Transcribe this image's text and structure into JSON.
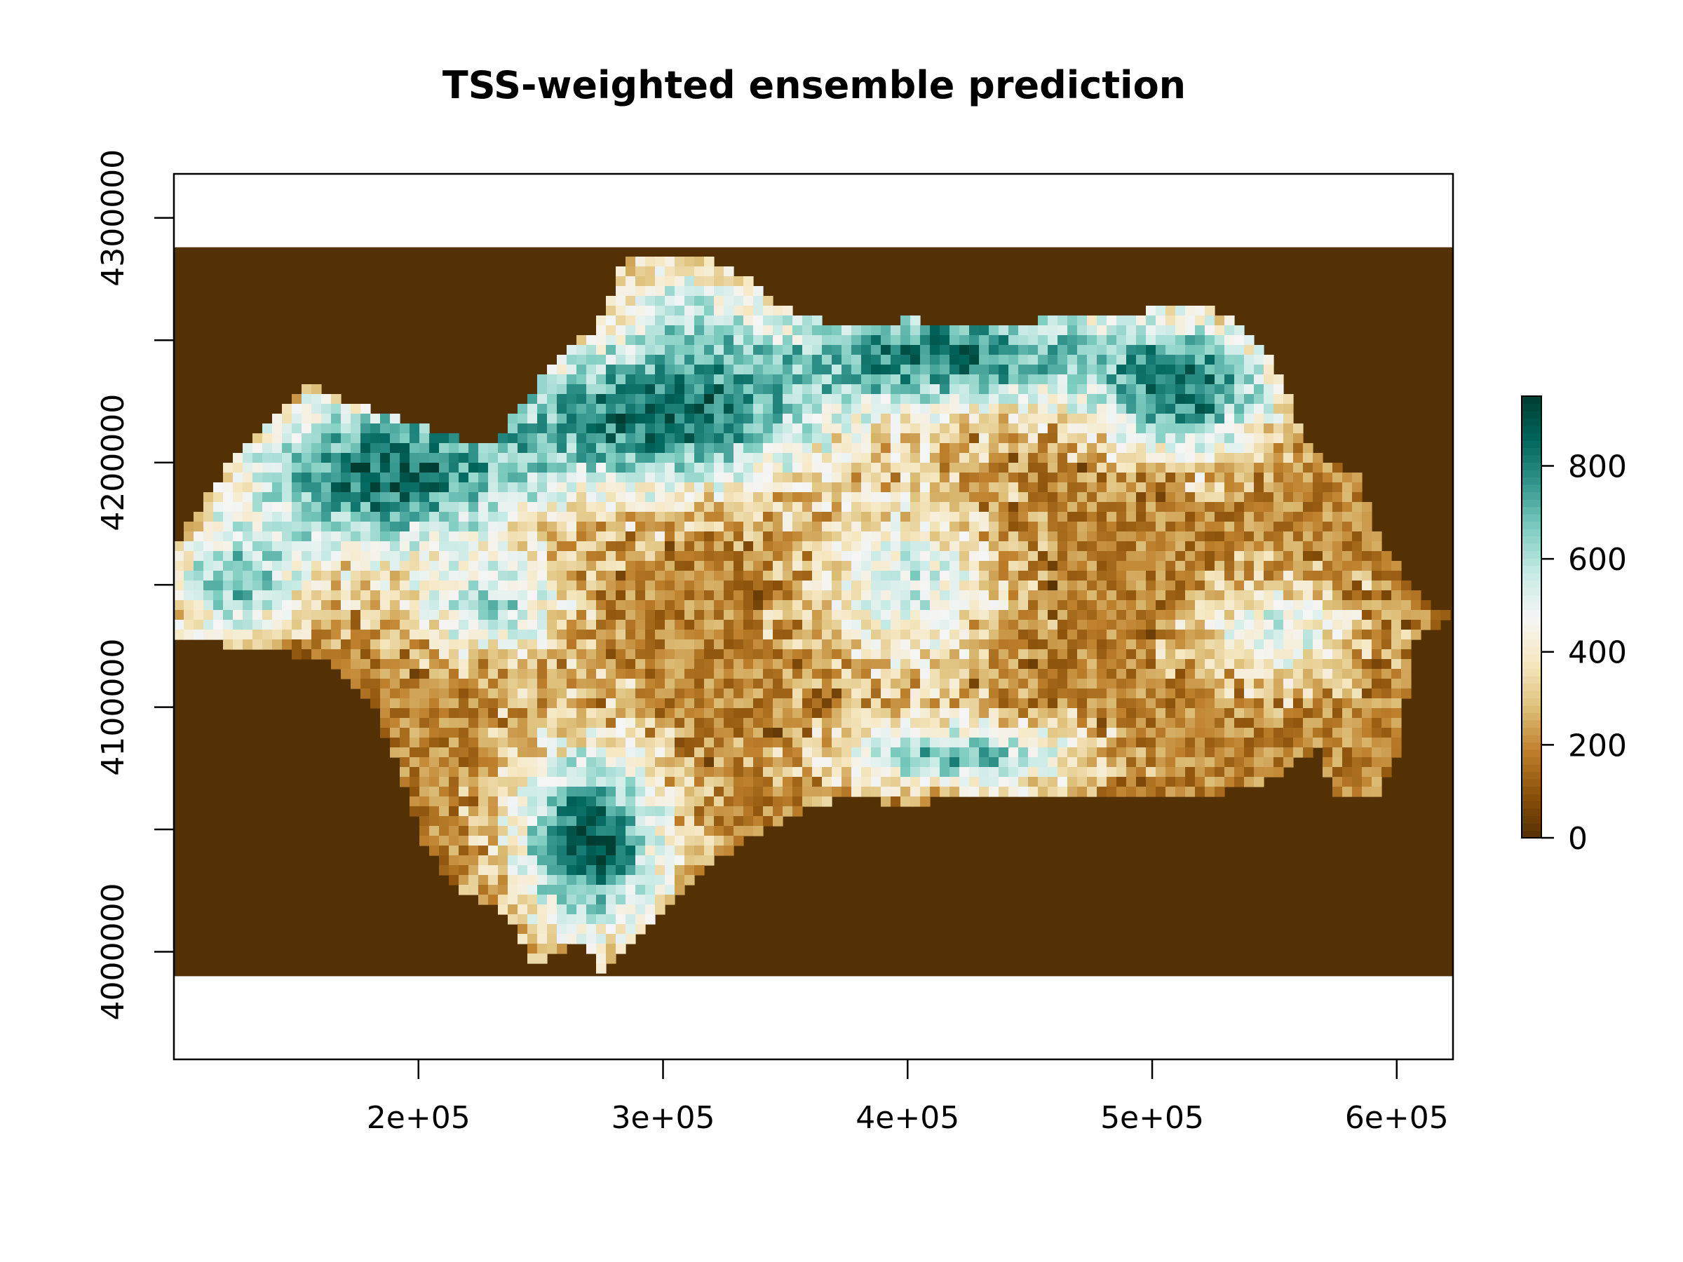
{
  "chart_data": {
    "type": "heatmap",
    "title": "TSS-weighted ensemble prediction",
    "xlabel": "",
    "ylabel": "",
    "xlim": [
      100000,
      623000
    ],
    "ylim": [
      3956000,
      4318000
    ],
    "raster_extent": {
      "x": [
        100000,
        623000
      ],
      "y": [
        3990000,
        4288000
      ]
    },
    "x_ticks": [
      {
        "value": 200000,
        "label": "2e+05"
      },
      {
        "value": 300000,
        "label": "3e+05"
      },
      {
        "value": 400000,
        "label": "4e+05"
      },
      {
        "value": 500000,
        "label": "5e+05"
      },
      {
        "value": 600000,
        "label": "6e+05"
      }
    ],
    "y_ticks": [
      {
        "value": 4000000,
        "label": "4000000"
      },
      {
        "value": 4050000,
        "label": ""
      },
      {
        "value": 4100000,
        "label": "4100000"
      },
      {
        "value": 4150000,
        "label": ""
      },
      {
        "value": 4200000,
        "label": "4200000"
      },
      {
        "value": 4250000,
        "label": ""
      },
      {
        "value": 4300000,
        "label": "4300000"
      }
    ],
    "background_value": 0,
    "region_blobs": [
      {
        "x": 185000,
        "y": 4195000,
        "rx": 75000,
        "ry": 42000,
        "value": 850
      },
      {
        "x": 300000,
        "y": 4220000,
        "rx": 85000,
        "ry": 40000,
        "value": 850
      },
      {
        "x": 420000,
        "y": 4245000,
        "rx": 90000,
        "ry": 30000,
        "value": 820
      },
      {
        "x": 515000,
        "y": 4230000,
        "rx": 45000,
        "ry": 35000,
        "value": 800
      },
      {
        "x": 310000,
        "y": 4265000,
        "rx": 35000,
        "ry": 25000,
        "value": 480
      },
      {
        "x": 125000,
        "y": 4150000,
        "rx": 35000,
        "ry": 30000,
        "value": 650
      },
      {
        "x": 400000,
        "y": 4150000,
        "rx": 45000,
        "ry": 45000,
        "value": 550
      },
      {
        "x": 270000,
        "y": 4045000,
        "rx": 40000,
        "ry": 50000,
        "value": 880
      },
      {
        "x": 420000,
        "y": 4080000,
        "rx": 65000,
        "ry": 18000,
        "value": 700
      },
      {
        "x": 550000,
        "y": 4130000,
        "rx": 40000,
        "ry": 25000,
        "value": 550
      },
      {
        "x": 230000,
        "y": 4140000,
        "rx": 40000,
        "ry": 25000,
        "value": 600
      }
    ],
    "region_base_value": 190,
    "legend": {
      "placement": "right",
      "range": [
        0,
        950
      ],
      "ticks": [
        {
          "value": 0,
          "label": "0"
        },
        {
          "value": 200,
          "label": "200"
        },
        {
          "value": 400,
          "label": "400"
        },
        {
          "value": 600,
          "label": "600"
        },
        {
          "value": 800,
          "label": "800"
        }
      ],
      "colors": [
        "#543005",
        "#8c510a",
        "#bf812d",
        "#dfc27d",
        "#f6e8c3",
        "#f5f5f5",
        "#c7eae5",
        "#80cdc1",
        "#35978f",
        "#01665e",
        "#003c30"
      ]
    }
  }
}
